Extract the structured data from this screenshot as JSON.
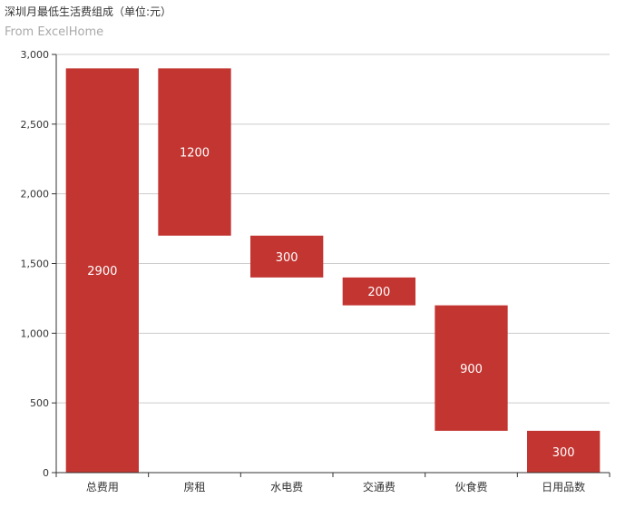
{
  "chart_data": {
    "type": "bar",
    "title": "深圳月最低生活费组成（单位:元）",
    "subtitle": "From ExcelHome",
    "categories": [
      "总费用",
      "房租",
      "水电费",
      "交通费",
      "伙食费",
      "日用品数"
    ],
    "values": [
      2900,
      1200,
      300,
      200,
      900,
      300
    ],
    "bases": [
      0,
      1700,
      1400,
      1200,
      300,
      0
    ],
    "data_labels": [
      "2900",
      "1200",
      "300",
      "200",
      "900",
      "300"
    ],
    "ylim": [
      0,
      3000
    ],
    "yticks": [
      0,
      500,
      1000,
      1500,
      2000,
      2500,
      3000
    ],
    "ytick_labels": [
      "0",
      "500",
      "1,000",
      "1,500",
      "2,000",
      "2,500",
      "3,000"
    ],
    "grid": true,
    "bar_color": "#c23531"
  }
}
